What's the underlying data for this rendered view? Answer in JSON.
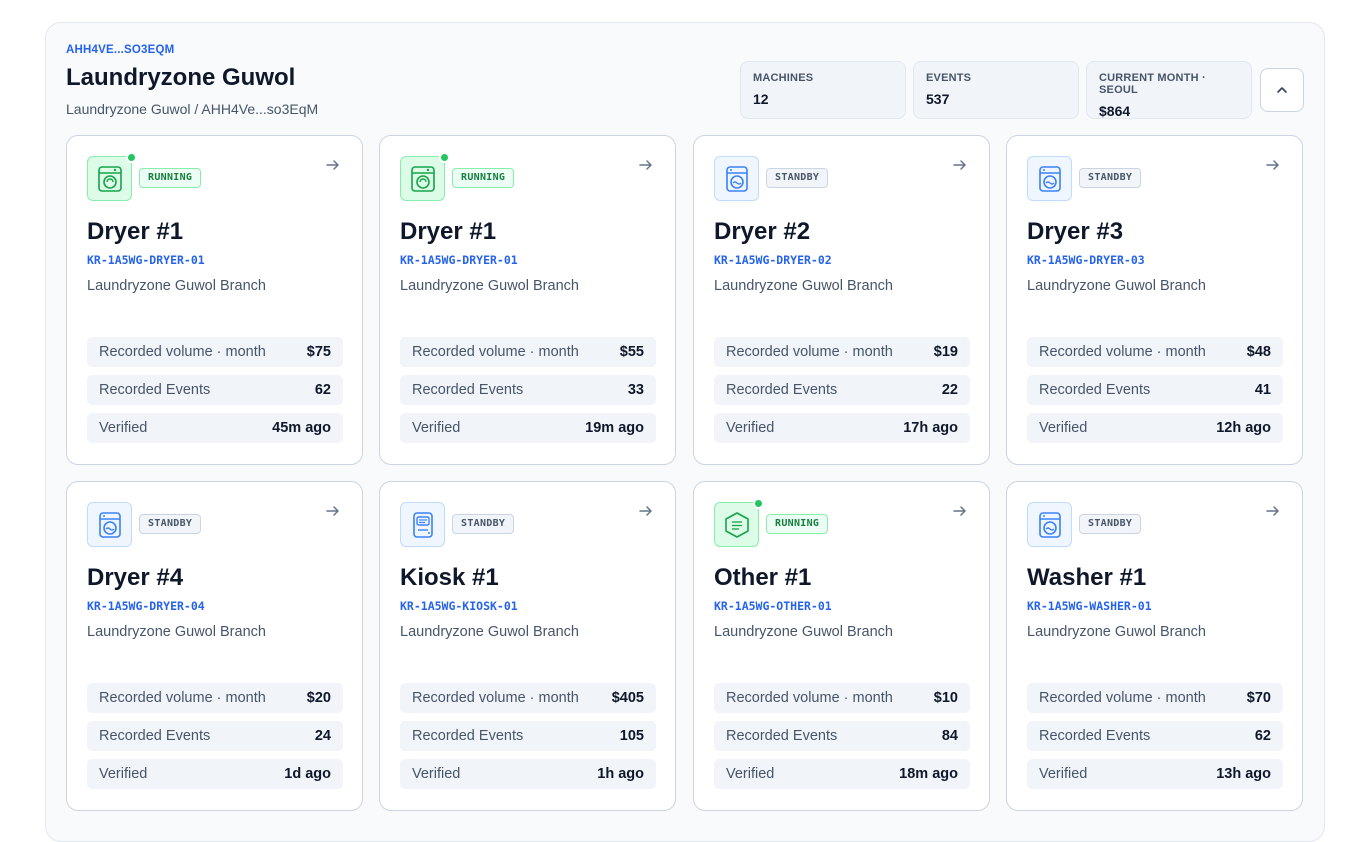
{
  "header": {
    "short_id": "AHH4VE...SO3EQM",
    "title": "Laundryzone Guwol",
    "breadcrumb": "Laundryzone Guwol / AHH4Ve...so3EqM"
  },
  "stats": [
    {
      "label": "MACHINES",
      "value": "12"
    },
    {
      "label": "EVENTS",
      "value": "537"
    },
    {
      "label": "CURRENT MONTH · SEOUL",
      "value": "$864"
    }
  ],
  "collapse_icon": "chevron-up-icon",
  "row_labels": {
    "volume": "Recorded volume · month",
    "events": "Recorded Events",
    "verified": "Verified"
  },
  "colors": {
    "accent": "#2563eb",
    "running": "#16a34a",
    "standby": "#3b82f6"
  },
  "cards": [
    {
      "name": "Dryer #1",
      "code": "KR-1A5WG-DRYER-01",
      "branch": "Laundryzone Guwol Branch",
      "status": "RUNNING",
      "icon": "dryer-icon",
      "volume": "$75",
      "events": "62",
      "verified": "45m ago"
    },
    {
      "name": "Dryer #1",
      "code": "KR-1A5WG-DRYER-01",
      "branch": "Laundryzone Guwol Branch",
      "status": "RUNNING",
      "icon": "dryer-icon",
      "volume": "$55",
      "events": "33",
      "verified": "19m ago"
    },
    {
      "name": "Dryer #2",
      "code": "KR-1A5WG-DRYER-02",
      "branch": "Laundryzone Guwol Branch",
      "status": "STANDBY",
      "icon": "washer-icon",
      "volume": "$19",
      "events": "22",
      "verified": "17h ago"
    },
    {
      "name": "Dryer #3",
      "code": "KR-1A5WG-DRYER-03",
      "branch": "Laundryzone Guwol Branch",
      "status": "STANDBY",
      "icon": "washer-icon",
      "volume": "$48",
      "events": "41",
      "verified": "12h ago"
    },
    {
      "name": "Dryer #4",
      "code": "KR-1A5WG-DRYER-04",
      "branch": "Laundryzone Guwol Branch",
      "status": "STANDBY",
      "icon": "washer-icon",
      "volume": "$20",
      "events": "24",
      "verified": "1d ago"
    },
    {
      "name": "Kiosk #1",
      "code": "KR-1A5WG-KIOSK-01",
      "branch": "Laundryzone Guwol Branch",
      "status": "STANDBY",
      "icon": "kiosk-icon",
      "volume": "$405",
      "events": "105",
      "verified": "1h ago"
    },
    {
      "name": "Other #1",
      "code": "KR-1A5WG-OTHER-01",
      "branch": "Laundryzone Guwol Branch",
      "status": "RUNNING",
      "icon": "box-icon",
      "volume": "$10",
      "events": "84",
      "verified": "18m ago"
    },
    {
      "name": "Washer #1",
      "code": "KR-1A5WG-WASHER-01",
      "branch": "Laundryzone Guwol Branch",
      "status": "STANDBY",
      "icon": "washer-icon",
      "volume": "$70",
      "events": "62",
      "verified": "13h ago"
    }
  ]
}
